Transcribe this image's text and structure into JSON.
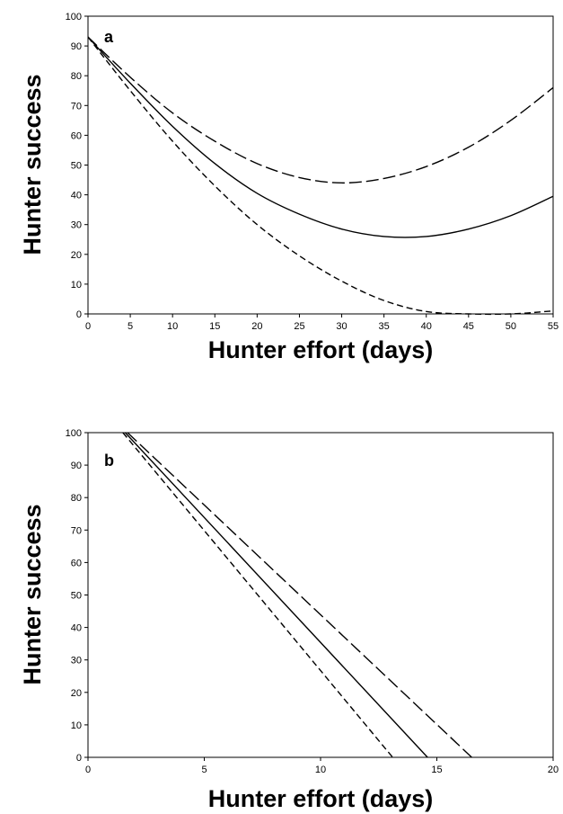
{
  "chart_data": [
    {
      "type": "line",
      "panel_label": "a",
      "xlabel": "Hunter effort (days)",
      "ylabel": "Hunter success",
      "xlim": [
        0,
        55
      ],
      "ylim": [
        0,
        100
      ],
      "xticks": [
        "0",
        "5",
        "10",
        "15",
        "20",
        "25",
        "30",
        "35",
        "40",
        "45",
        "50",
        "55"
      ],
      "yticks": [
        "0",
        "10",
        "20",
        "30",
        "40",
        "50",
        "60",
        "70",
        "80",
        "90",
        "100"
      ],
      "grid": false,
      "legend": "none",
      "series": [
        {
          "style": "long-dash",
          "x": [
            0,
            5,
            10,
            15,
            20,
            25,
            30,
            35,
            40,
            45,
            50,
            55
          ],
          "values": [
            93,
            79.5,
            67.5,
            58,
            50.5,
            45.8,
            44,
            45.5,
            49.5,
            56,
            65,
            76
          ]
        },
        {
          "style": "solid",
          "x": [
            0,
            5,
            10,
            15,
            20,
            25,
            30,
            35,
            40,
            45,
            50,
            55
          ],
          "values": [
            93,
            77.5,
            63,
            50.5,
            40.5,
            33.5,
            28.5,
            26,
            26,
            28.5,
            33,
            39.5
          ]
        },
        {
          "style": "short-dash",
          "x": [
            0,
            5,
            10,
            15,
            20,
            25,
            30,
            35,
            40,
            45,
            50,
            55
          ],
          "values": [
            93,
            75,
            58,
            43,
            30,
            19.5,
            11,
            4.5,
            0.8,
            0,
            0,
            1
          ]
        }
      ]
    },
    {
      "type": "line",
      "panel_label": "b",
      "xlabel": "Hunter effort (days)",
      "ylabel": "Hunter success",
      "xlim": [
        0,
        20
      ],
      "ylim": [
        0,
        100
      ],
      "xticks": [
        "0",
        "5",
        "10",
        "15",
        "20"
      ],
      "yticks": [
        "0",
        "10",
        "20",
        "30",
        "40",
        "50",
        "60",
        "70",
        "80",
        "90",
        "100"
      ],
      "grid": false,
      "legend": "none",
      "series": [
        {
          "style": "long-dash",
          "x": [
            1.7,
            16.5
          ],
          "values": [
            100,
            0
          ]
        },
        {
          "style": "solid",
          "x": [
            1.6,
            14.6
          ],
          "values": [
            100,
            0
          ]
        },
        {
          "style": "short-dash",
          "x": [
            1.5,
            13.1
          ],
          "values": [
            100,
            0
          ]
        }
      ]
    }
  ]
}
